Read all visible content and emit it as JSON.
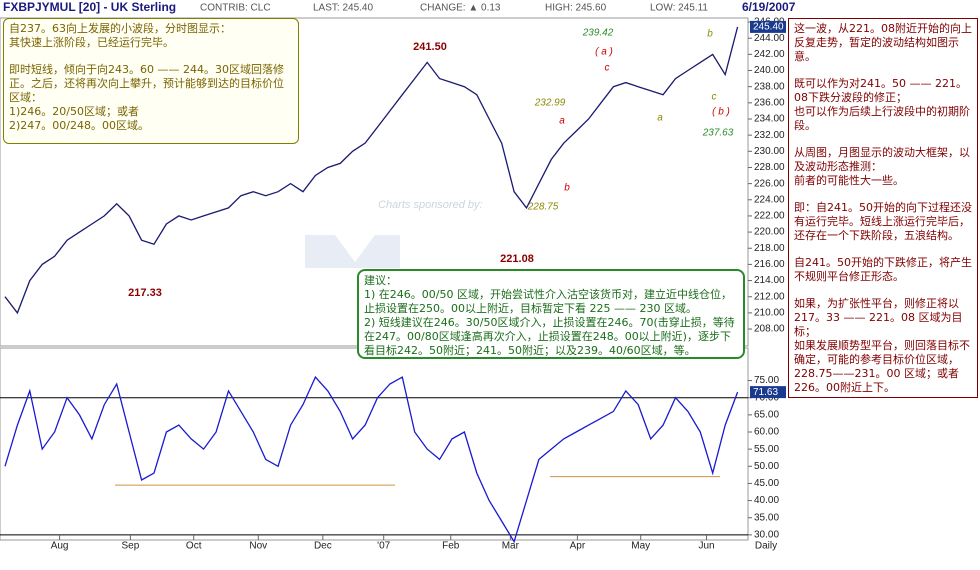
{
  "header": {
    "symbol": "FXBPJYMUL [20] - UK Sterling",
    "contrib": "CONTRIB: CLC",
    "last": "LAST: 245.40",
    "change": "CHANGE: ▲ 0.13",
    "high": "HIGH: 245.60",
    "low": "LOW: 245.11",
    "date": "6/19/2007"
  },
  "chart_data": [
    {
      "type": "line",
      "color": "#1a1a70",
      "values": [
        212,
        210,
        214,
        216,
        217,
        219,
        220,
        221,
        222,
        223.5,
        222,
        219,
        218.5,
        221,
        222,
        221.5,
        222,
        222.5,
        223,
        224.5,
        225,
        224.5,
        225,
        226,
        225,
        227,
        228,
        228.5,
        230,
        231,
        233,
        235,
        237,
        239,
        241,
        239,
        238.5,
        238,
        237,
        234,
        231,
        225,
        223,
        226,
        229,
        231,
        232.5,
        234,
        236,
        238,
        238.5,
        238,
        237.5,
        237,
        239,
        240,
        241,
        242,
        239.5,
        245.4
      ],
      "last_label": "245.40",
      "xlim": [
        -0.4,
        60
      ],
      "ylim": [
        205.9,
        246.5
      ],
      "yticks": [
        {
          "value": 208,
          "label": "208.00"
        },
        {
          "value": 210,
          "label": "210.00"
        },
        {
          "value": 212,
          "label": "212.00"
        },
        {
          "value": 214,
          "label": "214.00"
        },
        {
          "value": 216,
          "label": "216.00"
        },
        {
          "value": 218,
          "label": "218.00"
        },
        {
          "value": 220,
          "label": "220.00"
        },
        {
          "value": 222,
          "label": "222.00"
        },
        {
          "value": 224,
          "label": "224.00"
        },
        {
          "value": 226,
          "label": "226.00"
        },
        {
          "value": 228,
          "label": "228.00"
        },
        {
          "value": 230,
          "label": "230.00"
        },
        {
          "value": 232,
          "label": "232.00"
        },
        {
          "value": 234,
          "label": "234.00"
        },
        {
          "value": 236,
          "label": "236.00"
        },
        {
          "value": 238,
          "label": "238.00"
        },
        {
          "value": 240,
          "label": "240.00"
        },
        {
          "value": 242,
          "label": "242.00"
        },
        {
          "value": 244,
          "label": "244.00"
        },
        {
          "value": 246,
          "label": "246.00"
        }
      ],
      "annotations": [
        {
          "text": "241.50",
          "color": "#8b0000"
        },
        {
          "text": "217.33",
          "color": "#8b0000"
        },
        {
          "text": "221.08",
          "color": "#8b0000"
        },
        {
          "text": "239.42",
          "color": "#2e8b2e"
        },
        {
          "text": "232.99",
          "color": "#8a8a00"
        },
        {
          "text": "228.75",
          "color": "#8a8a00"
        },
        {
          "text": "237.63",
          "color": "#2e8b2e"
        },
        {
          "text": "( a )",
          "color": "#d00000"
        },
        {
          "text": "c",
          "color": "#d00000"
        },
        {
          "text": "a",
          "color": "#d00000"
        },
        {
          "text": "b",
          "color": "#d00000"
        },
        {
          "text": "a",
          "color": "#8a8a00"
        },
        {
          "text": "b",
          "color": "#8a8a00"
        },
        {
          "text": "c",
          "color": "#8a8a00"
        },
        {
          "text": "( b )",
          "color": "#d00000"
        }
      ],
      "watermark": "Charts sponsored by:"
    },
    {
      "type": "line",
      "color": "#1a1ad0",
      "values": [
        50,
        62,
        72,
        55,
        60,
        70,
        65,
        58,
        68,
        74,
        60,
        46,
        48,
        60,
        62,
        58,
        55,
        60,
        72,
        66,
        60,
        52,
        50,
        62,
        68,
        76,
        72,
        66,
        58,
        62,
        70,
        74,
        76,
        60,
        55,
        52,
        58,
        60,
        48,
        40,
        34,
        28,
        40,
        52,
        55,
        58,
        60,
        62,
        64,
        66,
        72,
        68,
        58,
        62,
        70,
        66,
        60,
        48,
        62,
        71.63
      ],
      "last_label": "71.63",
      "xlim": [
        -0.4,
        60
      ],
      "ylim": [
        28.5,
        84.5
      ],
      "xticks": [
        {
          "value": 4.4,
          "label": "Aug"
        },
        {
          "value": 10.1,
          "label": "Sep"
        },
        {
          "value": 15.2,
          "label": "Oct"
        },
        {
          "value": 20.4,
          "label": "Nov"
        },
        {
          "value": 25.6,
          "label": "Dec"
        },
        {
          "value": 30.5,
          "label": "'07"
        },
        {
          "value": 35.9,
          "label": "Feb"
        },
        {
          "value": 40.7,
          "label": "Mar"
        },
        {
          "value": 46.1,
          "label": "Apr"
        },
        {
          "value": 51.2,
          "label": "May"
        },
        {
          "value": 56.5,
          "label": "Jun"
        }
      ],
      "x_label": "Daily",
      "yticks": [
        {
          "value": 30,
          "label": "30.00"
        },
        {
          "value": 35,
          "label": "35.00"
        },
        {
          "value": 40,
          "label": "40.00"
        },
        {
          "value": 45,
          "label": "45.00"
        },
        {
          "value": 50,
          "label": "50.00"
        },
        {
          "value": 55,
          "label": "55.00"
        },
        {
          "value": 60,
          "label": "60.00"
        },
        {
          "value": 65,
          "label": "65.00"
        },
        {
          "value": 70,
          "label": "70.00"
        },
        {
          "value": 75,
          "label": "75.00"
        }
      ],
      "hlines": [
        70,
        30
      ],
      "support_levels": [
        44.5,
        47
      ],
      "support_color": "#d09040"
    }
  ],
  "notes": {
    "box1": [
      "自237。63向上发展的小波段，分时图显示：",
      "其快速上涨阶段，已经运行完毕。",
      "即时短线，倾向于向243。60 —— 244。30区域回落修正。之后，还将再次向上攀升，预计能够到达的目标价位区域：",
      "1)246。20/50区域；或者",
      "2)247。00/248。00区域。"
    ],
    "box2": [
      "建议：",
      "1) 在246。00/50 区域，开始尝试性介入沽空该货币对，建立近中线仓位，止损设置在250。00以上附近，目标暂定下看 225 —— 230 区域。",
      "2) 短线建议在246。30/50区域介入，止损设置在246。70(击穿止损，等待在247。00/80区域逢高再次介入，止损设置在248。00以上附近)，逐步下看目标242。50附近；241。50附近；以及239。40/60区域，等。"
    ],
    "box3": [
      "这一波，从221。08附近开始的向上反复走势，暂定的波动结构如图示意。",
      "既可以作为对241。50 —— 221。08下跌分波段的修正；",
      "也可以作为后续上行波段中的初期阶段。",
      "从周图，月图显示的波动大框架，以及波动形态推测：",
      "前者的可能性大一些。",
      "即：自241。50开始的向下过程还没有运行完毕。短线上涨运行完毕后，还存在一个下跌阶段，五浪结构。",
      "自241。50开始的下跌修正，将产生不规则平台修正形态。",
      "如果，为扩张性平台，则修正将以217。33 —— 221。08 区域为目标；",
      "如果发展顺势型平台，则回落目标不确定，可能的参考目标价位区域，228.75——231。00 区域；或者226。00附近上下。"
    ]
  }
}
